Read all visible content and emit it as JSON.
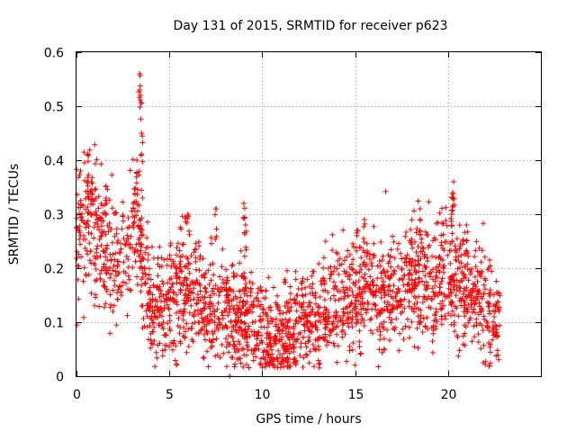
{
  "chart_data": {
    "type": "scatter",
    "title": "Day 131 of 2015, SRMTID for receiver p623",
    "xlabel": "GPS time / hours",
    "ylabel": "SRMTID / TECUs",
    "xlim": [
      0,
      25
    ],
    "ylim": [
      0,
      0.6
    ],
    "xticks": [
      0,
      5,
      10,
      15,
      20
    ],
    "yticks": [
      0,
      0.1,
      0.2,
      0.3,
      0.4,
      0.5,
      0.6
    ],
    "xtick_labels": [
      "0",
      "5",
      "10",
      "15",
      "20"
    ],
    "ytick_labels": [
      "0",
      "0.1",
      "0.2",
      "0.3",
      "0.4",
      "0.5",
      "0.6"
    ],
    "grid": true,
    "marker": "+",
    "color": "#ff0000",
    "x_extent": [
      0,
      22.8
    ],
    "trend": [
      [
        0,
        0.26
      ],
      [
        0.5,
        0.3
      ],
      [
        1,
        0.27
      ],
      [
        1.5,
        0.24
      ],
      [
        2,
        0.2
      ],
      [
        2.4,
        0.2
      ],
      [
        2.8,
        0.24
      ],
      [
        3.2,
        0.27
      ],
      [
        3.5,
        0.25
      ],
      [
        4,
        0.14
      ],
      [
        4.5,
        0.12
      ],
      [
        5,
        0.15
      ],
      [
        5.5,
        0.14
      ],
      [
        6,
        0.15
      ],
      [
        6.5,
        0.16
      ],
      [
        7,
        0.12
      ],
      [
        7.5,
        0.13
      ],
      [
        8,
        0.12
      ],
      [
        8.5,
        0.1
      ],
      [
        9,
        0.11
      ],
      [
        9.5,
        0.1
      ],
      [
        10,
        0.08
      ],
      [
        10.5,
        0.07
      ],
      [
        11,
        0.06
      ],
      [
        11.5,
        0.08
      ],
      [
        12,
        0.1
      ],
      [
        12.5,
        0.11
      ],
      [
        13,
        0.1
      ],
      [
        13.5,
        0.12
      ],
      [
        14,
        0.14
      ],
      [
        14.5,
        0.15
      ],
      [
        15,
        0.15
      ],
      [
        15.5,
        0.16
      ],
      [
        16,
        0.14
      ],
      [
        16.5,
        0.14
      ],
      [
        17,
        0.15
      ],
      [
        17.5,
        0.16
      ],
      [
        18,
        0.17
      ],
      [
        18.5,
        0.18
      ],
      [
        19,
        0.17
      ],
      [
        19.5,
        0.18
      ],
      [
        20,
        0.19
      ],
      [
        20.5,
        0.17
      ],
      [
        21,
        0.15
      ],
      [
        21.5,
        0.14
      ],
      [
        22,
        0.12
      ],
      [
        22.8,
        0.11
      ]
    ],
    "spikes": [
      [
        0.1,
        0.32
      ],
      [
        0.6,
        0.41
      ],
      [
        0.8,
        0.36
      ],
      [
        1.6,
        0.33
      ],
      [
        3.05,
        0.32
      ],
      [
        3.25,
        0.4
      ],
      [
        3.4,
        0.56
      ],
      [
        3.45,
        0.52
      ],
      [
        3.5,
        0.45
      ],
      [
        6.0,
        0.3
      ],
      [
        7.5,
        0.31
      ],
      [
        9.0,
        0.32
      ],
      [
        9.1,
        0.28
      ],
      [
        15.5,
        0.29
      ],
      [
        15.1,
        0.27
      ],
      [
        18.5,
        0.31
      ],
      [
        20.3,
        0.36
      ],
      [
        20.25,
        0.34
      ],
      [
        20.2,
        0.3
      ],
      [
        21.0,
        0.28
      ],
      [
        8.25,
        0.0
      ]
    ],
    "n_points": 2300
  }
}
